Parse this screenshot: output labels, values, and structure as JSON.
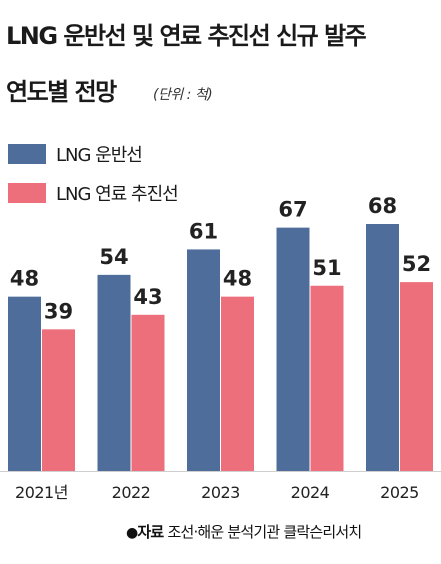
{
  "title_line1": "LNG 운반선 및 연료 추진선 신규 발주",
  "title_line2": "연도별 전망",
  "unit": "(단위 : 척)",
  "source": {
    "marker": "●",
    "label": "자료",
    "text": "조선·해운 분석기관 클락슨리서치"
  },
  "colors": {
    "series1": "#4f6d9a",
    "series2": "#ec6f7b",
    "axis": "#cfcfcf"
  },
  "chart_data": {
    "type": "bar",
    "categories": [
      "2021년",
      "2022",
      "2023",
      "2024",
      "2025"
    ],
    "series": [
      {
        "name": "LNG 운반선",
        "values": [
          48,
          54,
          61,
          67,
          68
        ]
      },
      {
        "name": "LNG 연료 추진선",
        "values": [
          39,
          43,
          48,
          51,
          52
        ]
      }
    ],
    "ylim": [
      0,
      68
    ],
    "legend": "top-left",
    "grid": false
  }
}
